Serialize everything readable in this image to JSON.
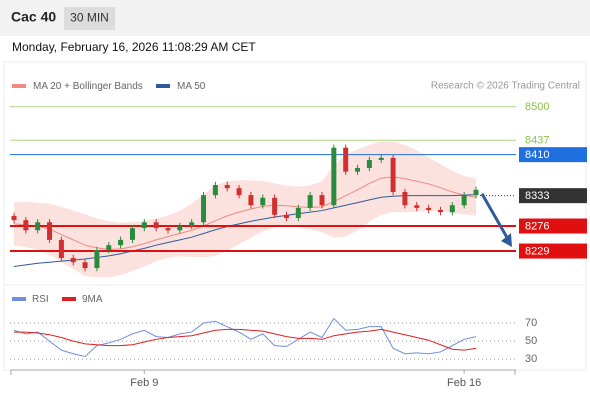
{
  "header": {
    "title": "Cac 40",
    "interval": "30 MIN",
    "datetime": "Monday, February 16, 2026 11:08:29 AM CET"
  },
  "chart_data": {
    "type": "candlestick",
    "legend": [
      {
        "name": "MA 20 + Bollinger Bands",
        "color": "#f08a80"
      },
      {
        "name": "MA 50",
        "color": "#2f5b9a"
      }
    ],
    "credit": "Research © 2026 Trading Central",
    "categories": [
      null,
      null,
      null,
      null,
      null,
      null,
      null,
      null,
      null,
      null,
      null,
      "Feb 9",
      null,
      null,
      null,
      null,
      null,
      null,
      null,
      null,
      null,
      null,
      null,
      null,
      null,
      null,
      null,
      null,
      null,
      null,
      null,
      null,
      null,
      null,
      null,
      null,
      null,
      null,
      "Feb 16",
      null
    ],
    "ylim": [
      8169,
      8522
    ],
    "up_color": "#2a8a3e",
    "down_color": "#d03030",
    "open": [
      8295,
      8287,
      8268,
      8283,
      8250,
      8216,
      8208,
      8197,
      8231,
      8240,
      8250,
      8272,
      8283,
      8272,
      8268,
      8276,
      8283,
      8334,
      8353,
      8347,
      8334,
      8315,
      8329,
      8297,
      8291,
      8310,
      8334,
      8315,
      8423,
      8378,
      8385,
      8400,
      8404,
      8340,
      8315,
      8310,
      8306,
      8302,
      8315,
      8334
    ],
    "high": [
      8301,
      8293,
      8289,
      8289,
      8256,
      8222,
      8214,
      8237,
      8246,
      8256,
      8278,
      8289,
      8289,
      8278,
      8282,
      8289,
      8340,
      8359,
      8359,
      8353,
      8340,
      8335,
      8335,
      8303,
      8316,
      8340,
      8340,
      8429,
      8429,
      8391,
      8406,
      8410,
      8410,
      8346,
      8321,
      8316,
      8312,
      8321,
      8340,
      8350
    ],
    "low": [
      8281,
      8262,
      8262,
      8244,
      8210,
      8202,
      8191,
      8191,
      8225,
      8234,
      8244,
      8266,
      8266,
      8262,
      8262,
      8270,
      8277,
      8328,
      8341,
      8328,
      8309,
      8309,
      8291,
      8285,
      8285,
      8304,
      8309,
      8309,
      8372,
      8372,
      8379,
      8394,
      8334,
      8309,
      8304,
      8300,
      8296,
      8296,
      8309,
      8328
    ],
    "close": [
      8287,
      8268,
      8283,
      8250,
      8216,
      8208,
      8197,
      8231,
      8240,
      8250,
      8272,
      8283,
      8272,
      8268,
      8276,
      8283,
      8334,
      8353,
      8347,
      8334,
      8315,
      8329,
      8297,
      8291,
      8310,
      8334,
      8315,
      8423,
      8378,
      8385,
      8400,
      8404,
      8340,
      8315,
      8310,
      8306,
      8302,
      8315,
      8334,
      8344
    ],
    "bollinger_upper": [
      8320,
      8322,
      8320,
      8318,
      8312,
      8305,
      8298,
      8290,
      8285,
      8282,
      8283,
      8286,
      8290,
      8296,
      8305,
      8318,
      8335,
      8352,
      8360,
      8362,
      8362,
      8360,
      8356,
      8352,
      8350,
      8352,
      8360,
      8390,
      8410,
      8420,
      8428,
      8435,
      8434,
      8428,
      8418,
      8405,
      8392,
      8380,
      8370,
      8365
    ],
    "bollinger_lower": [
      8240,
      8236,
      8232,
      8222,
      8208,
      8195,
      8182,
      8180,
      8179,
      8184,
      8191,
      8200,
      8210,
      8216,
      8219,
      8218,
      8217,
      8220,
      8230,
      8242,
      8254,
      8266,
      8274,
      8276,
      8274,
      8270,
      8264,
      8254,
      8256,
      8268,
      8284,
      8297,
      8302,
      8302,
      8302,
      8305,
      8304,
      8300,
      8298,
      8295
    ],
    "ma20": [
      8280,
      8278,
      8276,
      8270,
      8260,
      8250,
      8240,
      8235,
      8232,
      8233,
      8237,
      8243,
      8250,
      8256,
      8262,
      8268,
      8276,
      8286,
      8295,
      8302,
      8308,
      8313,
      8315,
      8314,
      8312,
      8311,
      8312,
      8322,
      8333,
      8344,
      8356,
      8366,
      8368,
      8365,
      8360,
      8355,
      8348,
      8340,
      8334,
      8330
    ],
    "ma50": [
      8200,
      8203,
      8206,
      8208,
      8210,
      8212,
      8214,
      8217,
      8220,
      8224,
      8229,
      8234,
      8240,
      8245,
      8250,
      8255,
      8262,
      8269,
      8275,
      8280,
      8285,
      8289,
      8293,
      8296,
      8299,
      8302,
      8305,
      8310,
      8315,
      8320,
      8325,
      8330,
      8332,
      8333,
      8333,
      8333,
      8333,
      8333,
      8334,
      8335
    ],
    "levels": [
      {
        "value": 8500,
        "color": "#8bc34a",
        "boxed": false,
        "line": "thin"
      },
      {
        "value": 8437,
        "color": "#8bc34a",
        "boxed": false,
        "line": "thin"
      },
      {
        "value": 8410,
        "color": "#1f6fe0",
        "boxed": true,
        "line": "thin"
      },
      {
        "value": 8333,
        "color": "#333333",
        "boxed": true,
        "line": "dotted"
      },
      {
        "value": 8276,
        "color": "#e01010",
        "boxed": true,
        "line": "thick"
      },
      {
        "value": 8229,
        "color": "#e01010",
        "boxed": true,
        "line": "thick"
      }
    ],
    "rsi": {
      "ylim": [
        18,
        90
      ],
      "yticks": [
        70,
        50,
        30
      ],
      "series": [
        {
          "name": "RSI",
          "color": "#6f8fdc",
          "values": [
            62,
            58,
            60,
            50,
            40,
            36,
            33,
            45,
            48,
            52,
            58,
            62,
            55,
            54,
            58,
            60,
            70,
            72,
            66,
            60,
            52,
            58,
            45,
            44,
            52,
            60,
            54,
            75,
            62,
            63,
            66,
            66,
            42,
            36,
            37,
            36,
            38,
            45,
            52,
            55
          ]
        },
        {
          "name": "9MA",
          "color": "#e02020",
          "values": [
            60,
            60,
            59,
            57,
            54,
            50,
            47,
            46,
            45,
            45,
            46,
            49,
            52,
            54,
            55,
            56,
            59,
            62,
            63,
            63,
            62,
            61,
            58,
            55,
            53,
            53,
            52,
            56,
            58,
            60,
            61,
            63,
            60,
            57,
            54,
            51,
            46,
            41,
            40,
            42
          ]
        }
      ]
    }
  }
}
